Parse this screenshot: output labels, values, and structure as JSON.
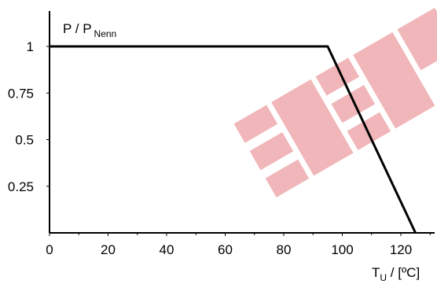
{
  "chart_data": {
    "type": "line",
    "title": "",
    "ylabel": {
      "main": "P / P",
      "sub": "Nenn"
    },
    "xlabel": {
      "pre": "T",
      "sub": "U",
      "post": " / [ºC]"
    },
    "xlim": [
      0,
      130
    ],
    "ylim": [
      0,
      1.2
    ],
    "x_ticks": [
      0,
      20,
      40,
      60,
      80,
      100,
      120
    ],
    "y_ticks": [
      0.25,
      0.5,
      0.75,
      1
    ],
    "x_tick_labels": [
      "0",
      "20",
      "40",
      "60",
      "80",
      "100",
      "120"
    ],
    "y_tick_labels": [
      "0.25",
      "0.5",
      "0.75",
      "1"
    ],
    "grid": false,
    "series": [
      {
        "x": [
          0,
          95,
          125
        ],
        "y": [
          1,
          1,
          0
        ]
      }
    ],
    "colors": {
      "line": "#000000",
      "axis": "#000000",
      "watermark": "#e8868b"
    }
  },
  "watermark": {
    "text": "EEP"
  }
}
